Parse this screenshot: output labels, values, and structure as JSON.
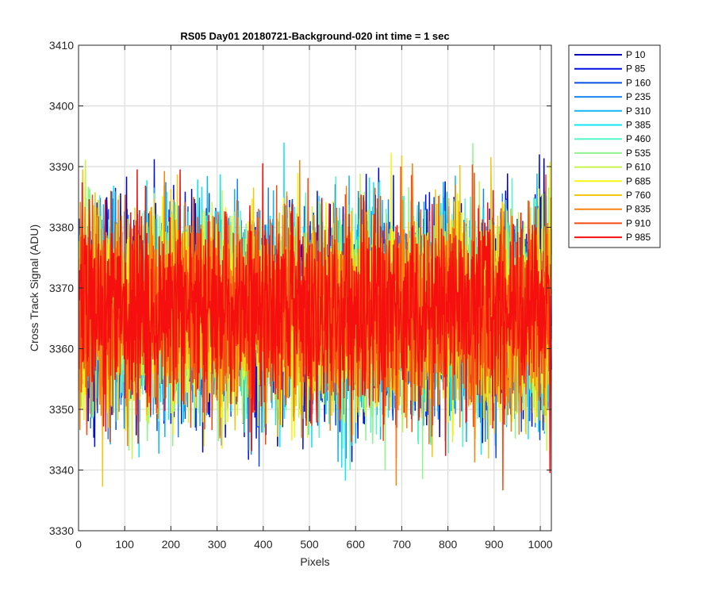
{
  "chart_data": {
    "type": "line",
    "title": "RS05 Day01 20180721-Background-020 int time = 1 sec",
    "xlabel": "Pixels",
    "ylabel": "Cross Track Signal (ADU)",
    "xlim": [
      0,
      1024
    ],
    "ylim": [
      3330,
      3410
    ],
    "xticks": [
      0,
      100,
      200,
      300,
      400,
      500,
      600,
      700,
      800,
      900,
      1000
    ],
    "yticks": [
      3330,
      3340,
      3350,
      3360,
      3370,
      3380,
      3390,
      3400,
      3410
    ],
    "grid": true,
    "legend_position": "outside-top-right",
    "n_points_per_series": 1024,
    "noise": {
      "mean": 3366,
      "std": 8.2,
      "min": 3334,
      "max": 3403
    },
    "series": [
      {
        "name": "P 10",
        "color": "#0000bf",
        "seed": 11
      },
      {
        "name": "P 85",
        "color": "#0010e0",
        "seed": 23
      },
      {
        "name": "P 160",
        "color": "#0b4fe0",
        "seed": 37
      },
      {
        "name": "P 235",
        "color": "#1a85f0",
        "seed": 41
      },
      {
        "name": "P 310",
        "color": "#13b5f5",
        "seed": 53
      },
      {
        "name": "P 385",
        "color": "#12e5f5",
        "seed": 67
      },
      {
        "name": "P 460",
        "color": "#56f5c6",
        "seed": 71
      },
      {
        "name": "P 535",
        "color": "#8ef58c",
        "seed": 83
      },
      {
        "name": "P 610",
        "color": "#c6f54a",
        "seed": 97
      },
      {
        "name": "P 685",
        "color": "#f5f512",
        "seed": 101
      },
      {
        "name": "P 760",
        "color": "#f5c612",
        "seed": 113
      },
      {
        "name": "P 835",
        "color": "#f58412",
        "seed": 127
      },
      {
        "name": "P 910",
        "color": "#f54b12",
        "seed": 131
      },
      {
        "name": "P 985",
        "color": "#f50f0f",
        "seed": 149
      }
    ]
  }
}
